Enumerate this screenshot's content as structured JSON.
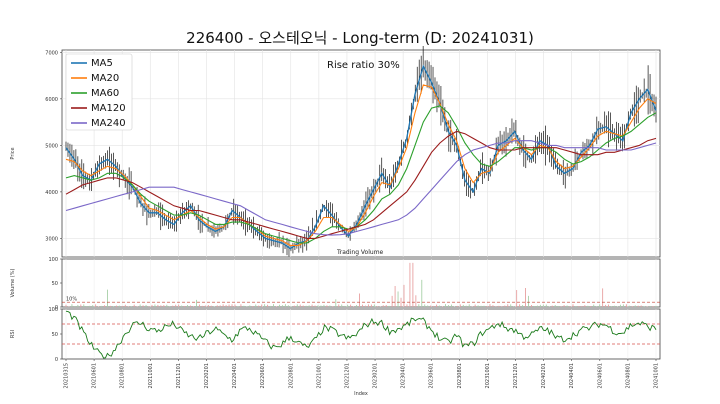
{
  "chart_data": {
    "type": "line",
    "title": "226400 - 오스테오닉 - Long-term (D: 20241031)",
    "annotation": "Rise ratio 30%",
    "trading_volume_label": "Trading Volume",
    "xlabel": "Index",
    "x_tick_labels": [
      "20210315",
      "20210601",
      "20210801",
      "20211001",
      "20211201",
      "20220201",
      "20220401",
      "20220601",
      "20220801",
      "20221001",
      "20221201",
      "20230201",
      "20230401",
      "20230601",
      "20230801",
      "20231001",
      "20231201",
      "20240201",
      "20240401",
      "20240601",
      "20240801",
      "20241001"
    ],
    "price_panel": {
      "ylabel": "Price",
      "ylim": [
        2600,
        7050
      ],
      "yticks": [
        3000,
        4000,
        5000,
        6000,
        7000
      ],
      "grid": true,
      "legend_position": "top-left",
      "series": [
        {
          "name": "MA5",
          "color": "#1f77b4",
          "values": [
            4950,
            4700,
            4350,
            4250,
            4600,
            4700,
            4550,
            4300,
            4100,
            3750,
            3550,
            3550,
            3400,
            3300,
            3550,
            3700,
            3400,
            3250,
            3150,
            3250,
            3600,
            3450,
            3300,
            3150,
            3000,
            2950,
            2900,
            2780,
            2900,
            2950,
            3250,
            3700,
            3500,
            3250,
            3050,
            3300,
            3700,
            4050,
            4400,
            4100,
            4600,
            5150,
            6100,
            6700,
            6350,
            5900,
            5300,
            5000,
            4250,
            4000,
            4500,
            4400,
            5000,
            5100,
            5300,
            4900,
            4700,
            5100,
            5000,
            4550,
            4400,
            4500,
            4850,
            5000,
            5350,
            5400,
            5250,
            5100,
            5700,
            6000,
            6200,
            5750
          ]
        },
        {
          "name": "MA20",
          "color": "#ff7f0e",
          "values": [
            4700,
            4650,
            4450,
            4350,
            4450,
            4550,
            4500,
            4350,
            4150,
            3900,
            3650,
            3600,
            3500,
            3400,
            3500,
            3600,
            3450,
            3300,
            3200,
            3250,
            3450,
            3450,
            3300,
            3200,
            3050,
            3000,
            2950,
            2850,
            2850,
            2950,
            3150,
            3450,
            3450,
            3300,
            3150,
            3250,
            3550,
            3900,
            4200,
            4150,
            4500,
            4950,
            5700,
            6300,
            6250,
            5900,
            5450,
            5100,
            4500,
            4200,
            4400,
            4450,
            4850,
            5000,
            5150,
            4950,
            4800,
            5000,
            4950,
            4650,
            4500,
            4550,
            4750,
            4950,
            5200,
            5300,
            5250,
            5200,
            5500,
            5800,
            6000,
            5900
          ]
        },
        {
          "name": "MA60",
          "color": "#2ca02c",
          "values": [
            4300,
            4350,
            4300,
            4250,
            4300,
            4400,
            4400,
            4300,
            4150,
            3950,
            3800,
            3700,
            3600,
            3500,
            3500,
            3550,
            3500,
            3400,
            3300,
            3300,
            3350,
            3350,
            3300,
            3200,
            3100,
            3050,
            3000,
            2950,
            2900,
            2900,
            3000,
            3150,
            3250,
            3250,
            3200,
            3250,
            3400,
            3600,
            3850,
            3950,
            4150,
            4500,
            5000,
            5500,
            5800,
            5850,
            5700,
            5400,
            5050,
            4800,
            4600,
            4550,
            4650,
            4800,
            4950,
            4950,
            4900,
            4950,
            4950,
            4850,
            4700,
            4600,
            4650,
            4750,
            4900,
            5050,
            5150,
            5200,
            5300,
            5450,
            5600,
            5700
          ]
        },
        {
          "name": "MA120",
          "color": "#9b1c1c",
          "values": [
            3950,
            4050,
            4150,
            4200,
            4250,
            4300,
            4300,
            4250,
            4200,
            4100,
            4000,
            3900,
            3800,
            3700,
            3650,
            3600,
            3600,
            3550,
            3500,
            3450,
            3400,
            3400,
            3350,
            3300,
            3250,
            3200,
            3150,
            3100,
            3050,
            3000,
            3000,
            3050,
            3100,
            3150,
            3200,
            3250,
            3300,
            3400,
            3550,
            3700,
            3850,
            4000,
            4250,
            4550,
            4850,
            5050,
            5200,
            5300,
            5250,
            5150,
            5050,
            4950,
            4900,
            4900,
            4900,
            4950,
            4950,
            4950,
            4950,
            4950,
            4900,
            4850,
            4800,
            4800,
            4800,
            4850,
            4850,
            4900,
            4950,
            5000,
            5100,
            5150
          ]
        },
        {
          "name": "MA240",
          "color": "#7b68c8",
          "values": [
            3600,
            3650,
            3700,
            3750,
            3800,
            3850,
            3900,
            3950,
            4000,
            4050,
            4100,
            4100,
            4100,
            4100,
            4050,
            4000,
            3950,
            3900,
            3850,
            3800,
            3750,
            3700,
            3600,
            3500,
            3400,
            3350,
            3300,
            3250,
            3200,
            3150,
            3100,
            3080,
            3070,
            3080,
            3100,
            3150,
            3200,
            3250,
            3300,
            3350,
            3400,
            3500,
            3650,
            3850,
            4050,
            4250,
            4450,
            4650,
            4800,
            4900,
            4950,
            5000,
            5050,
            5050,
            5100,
            5100,
            5100,
            5050,
            5000,
            5000,
            4950,
            4950,
            4950,
            4950,
            4950,
            4900,
            4900,
            4900,
            4900,
            4950,
            5000,
            5050
          ]
        }
      ]
    },
    "volume_panel": {
      "ylabel": "Volume (%)",
      "ylim": [
        0,
        100
      ],
      "yticks": [
        0,
        50,
        100
      ],
      "threshold": 10,
      "threshold_label": "10%"
    },
    "rsi_panel": {
      "ylabel": "RSI",
      "ylim": [
        0,
        100
      ],
      "yticks": [
        0,
        50,
        100
      ],
      "upper": 70,
      "lower": 30,
      "values": [
        95,
        82,
        55,
        28,
        10,
        5,
        22,
        48,
        68,
        72,
        60,
        56,
        65,
        70,
        55,
        45,
        40,
        52,
        60,
        48,
        38,
        58,
        62,
        48,
        35,
        22,
        30,
        45,
        32,
        22,
        38,
        62,
        58,
        48,
        40,
        50,
        68,
        75,
        72,
        55,
        60,
        68,
        80,
        75,
        58,
        40,
        32,
        48,
        25,
        30,
        52,
        60,
        72,
        62,
        58,
        45,
        48,
        60,
        58,
        42,
        40,
        48,
        58,
        62,
        70,
        68,
        55,
        52,
        68,
        72,
        65,
        60
      ]
    }
  }
}
